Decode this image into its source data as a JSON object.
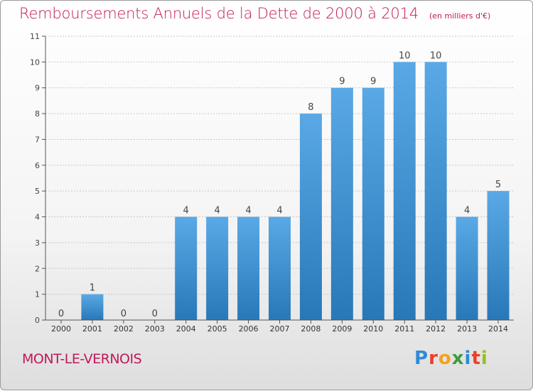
{
  "header": {
    "title": "Remboursements Annuels de la Dette de 2000 à 2014",
    "unit": "(en milliers d'€)"
  },
  "commune": "MONT-LE-VERNOIS",
  "logo_text": "Proxiti",
  "colors": {
    "bar_top": "#5aa9e6",
    "bar_bottom": "#2878b8",
    "title": "#c2185b",
    "grid": "#c8c8c8"
  },
  "chart_data": {
    "type": "bar",
    "categories": [
      "2000",
      "2001",
      "2002",
      "2003",
      "2004",
      "2005",
      "2006",
      "2007",
      "2008",
      "2009",
      "2010",
      "2011",
      "2012",
      "2013",
      "2014"
    ],
    "values": [
      0,
      1,
      0,
      0,
      4,
      4,
      4,
      4,
      8,
      9,
      9,
      10,
      10,
      4,
      5
    ],
    "title": "Remboursements Annuels de la Dette de 2000 à 2014",
    "xlabel": "",
    "ylabel": "",
    "ylim": [
      0,
      11
    ],
    "yticks": [
      0,
      1,
      2,
      3,
      4,
      5,
      6,
      7,
      8,
      9,
      10,
      11
    ],
    "grid": true,
    "data_labels": true
  }
}
